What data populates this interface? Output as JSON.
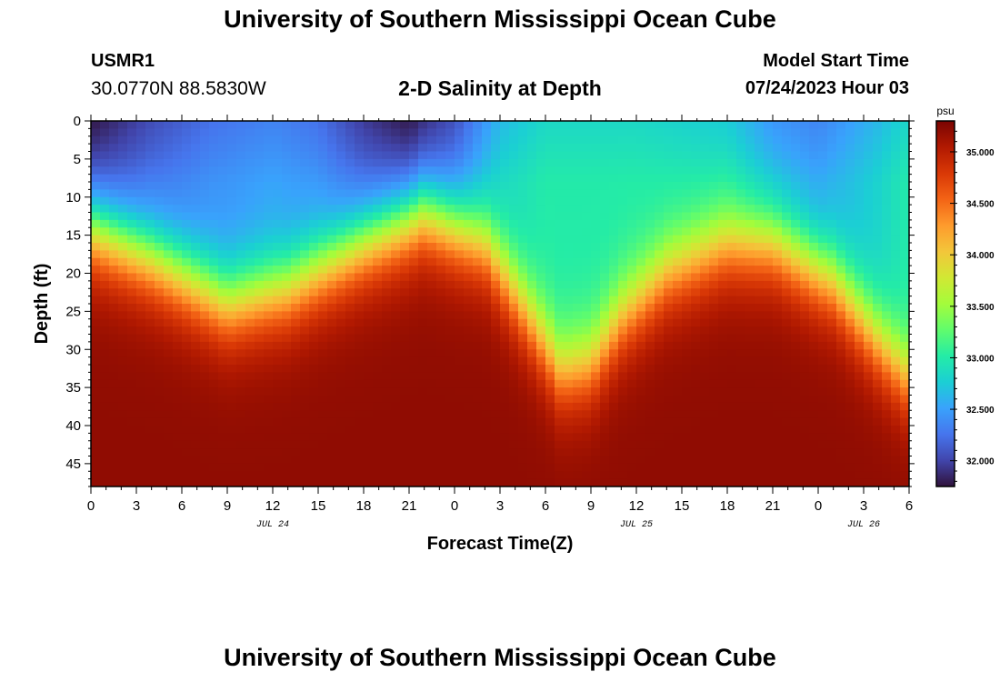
{
  "header": {
    "title": "University of Southern Mississippi Ocean Cube",
    "station_id": "USMR1",
    "station_coords": "30.0770N  88.5830W",
    "chart_title": "2-D Salinity at Depth",
    "model_start_label": "Model Start Time",
    "model_start_value": "07/24/2023 Hour 03"
  },
  "footer": {
    "title": "University of Southern Mississippi Ocean Cube"
  },
  "chart_data": {
    "type": "heatmap",
    "title": "2-D Salinity at Depth",
    "xlabel": "Forecast Time(Z)",
    "ylabel": "Depth (ft)",
    "x_range_hours": [
      0,
      54
    ],
    "y_range_ft": [
      0,
      48
    ],
    "x_tick_labels": [
      "0",
      "3",
      "6",
      "9",
      "12",
      "15",
      "18",
      "21",
      "0",
      "3",
      "6",
      "9",
      "12",
      "15",
      "18",
      "21",
      "0",
      "3",
      "6"
    ],
    "y_tick_labels": [
      "0",
      "5",
      "10",
      "15",
      "20",
      "25",
      "30",
      "35",
      "40",
      "45"
    ],
    "y_tick_values": [
      0,
      5,
      10,
      15,
      20,
      25,
      30,
      35,
      40,
      45
    ],
    "date_labels": [
      {
        "text": "JUL 24",
        "hour": 12
      },
      {
        "text": "JUL 25",
        "hour": 36
      },
      {
        "text": "JUL 26",
        "hour": 51
      }
    ],
    "colorbar": {
      "unit": "psu",
      "min": 31.75,
      "max": 35.3,
      "labels": [
        "35.000",
        "34.500",
        "34.000",
        "33.500",
        "33.000",
        "32.500",
        "32.000"
      ],
      "label_values": [
        35.0,
        34.5,
        34.0,
        33.5,
        33.0,
        32.5,
        32.0
      ]
    },
    "surface_salinity_by_hour": [
      {
        "hour": 0,
        "psu": 31.9
      },
      {
        "hour": 4,
        "psu": 32.2
      },
      {
        "hour": 8,
        "psu": 32.4
      },
      {
        "hour": 12,
        "psu": 32.5
      },
      {
        "hour": 15,
        "psu": 32.4
      },
      {
        "hour": 18,
        "psu": 32.1
      },
      {
        "hour": 21,
        "psu": 31.9
      },
      {
        "hour": 24,
        "psu": 32.2
      },
      {
        "hour": 27,
        "psu": 32.8
      },
      {
        "hour": 30,
        "psu": 33.0
      },
      {
        "hour": 36,
        "psu": 33.0
      },
      {
        "hour": 42,
        "psu": 32.9
      },
      {
        "hour": 45,
        "psu": 32.6
      },
      {
        "hour": 48,
        "psu": 32.5
      },
      {
        "hour": 52,
        "psu": 32.8
      },
      {
        "hour": 54,
        "psu": 33.0
      }
    ],
    "halocline_depth_ft_by_hour": [
      {
        "hour": 0,
        "ft": 14
      },
      {
        "hour": 4,
        "ft": 18
      },
      {
        "hour": 9,
        "ft": 24
      },
      {
        "hour": 13,
        "ft": 22
      },
      {
        "hour": 18,
        "ft": 16
      },
      {
        "hour": 22,
        "ft": 12
      },
      {
        "hour": 26,
        "ft": 16
      },
      {
        "hour": 29,
        "ft": 26
      },
      {
        "hour": 31,
        "ft": 33
      },
      {
        "hour": 33,
        "ft": 32
      },
      {
        "hour": 35,
        "ft": 26
      },
      {
        "hour": 38,
        "ft": 20
      },
      {
        "hour": 42,
        "ft": 16
      },
      {
        "hour": 45,
        "ft": 16
      },
      {
        "hour": 49,
        "ft": 21
      },
      {
        "hour": 52,
        "ft": 29
      },
      {
        "hour": 54,
        "ft": 34
      }
    ],
    "bottom_salinity_psu": 35.2
  },
  "colors": {
    "background": "#ffffff",
    "colormap": [
      "#30123b",
      "#4145ab",
      "#4675ed",
      "#39a2fc",
      "#1bcfd4",
      "#24eca6",
      "#61fc6c",
      "#a4fc3b",
      "#d1e834",
      "#f3c63a",
      "#fe9b2d",
      "#f36315",
      "#d93806",
      "#b11901",
      "#7a0402"
    ]
  }
}
